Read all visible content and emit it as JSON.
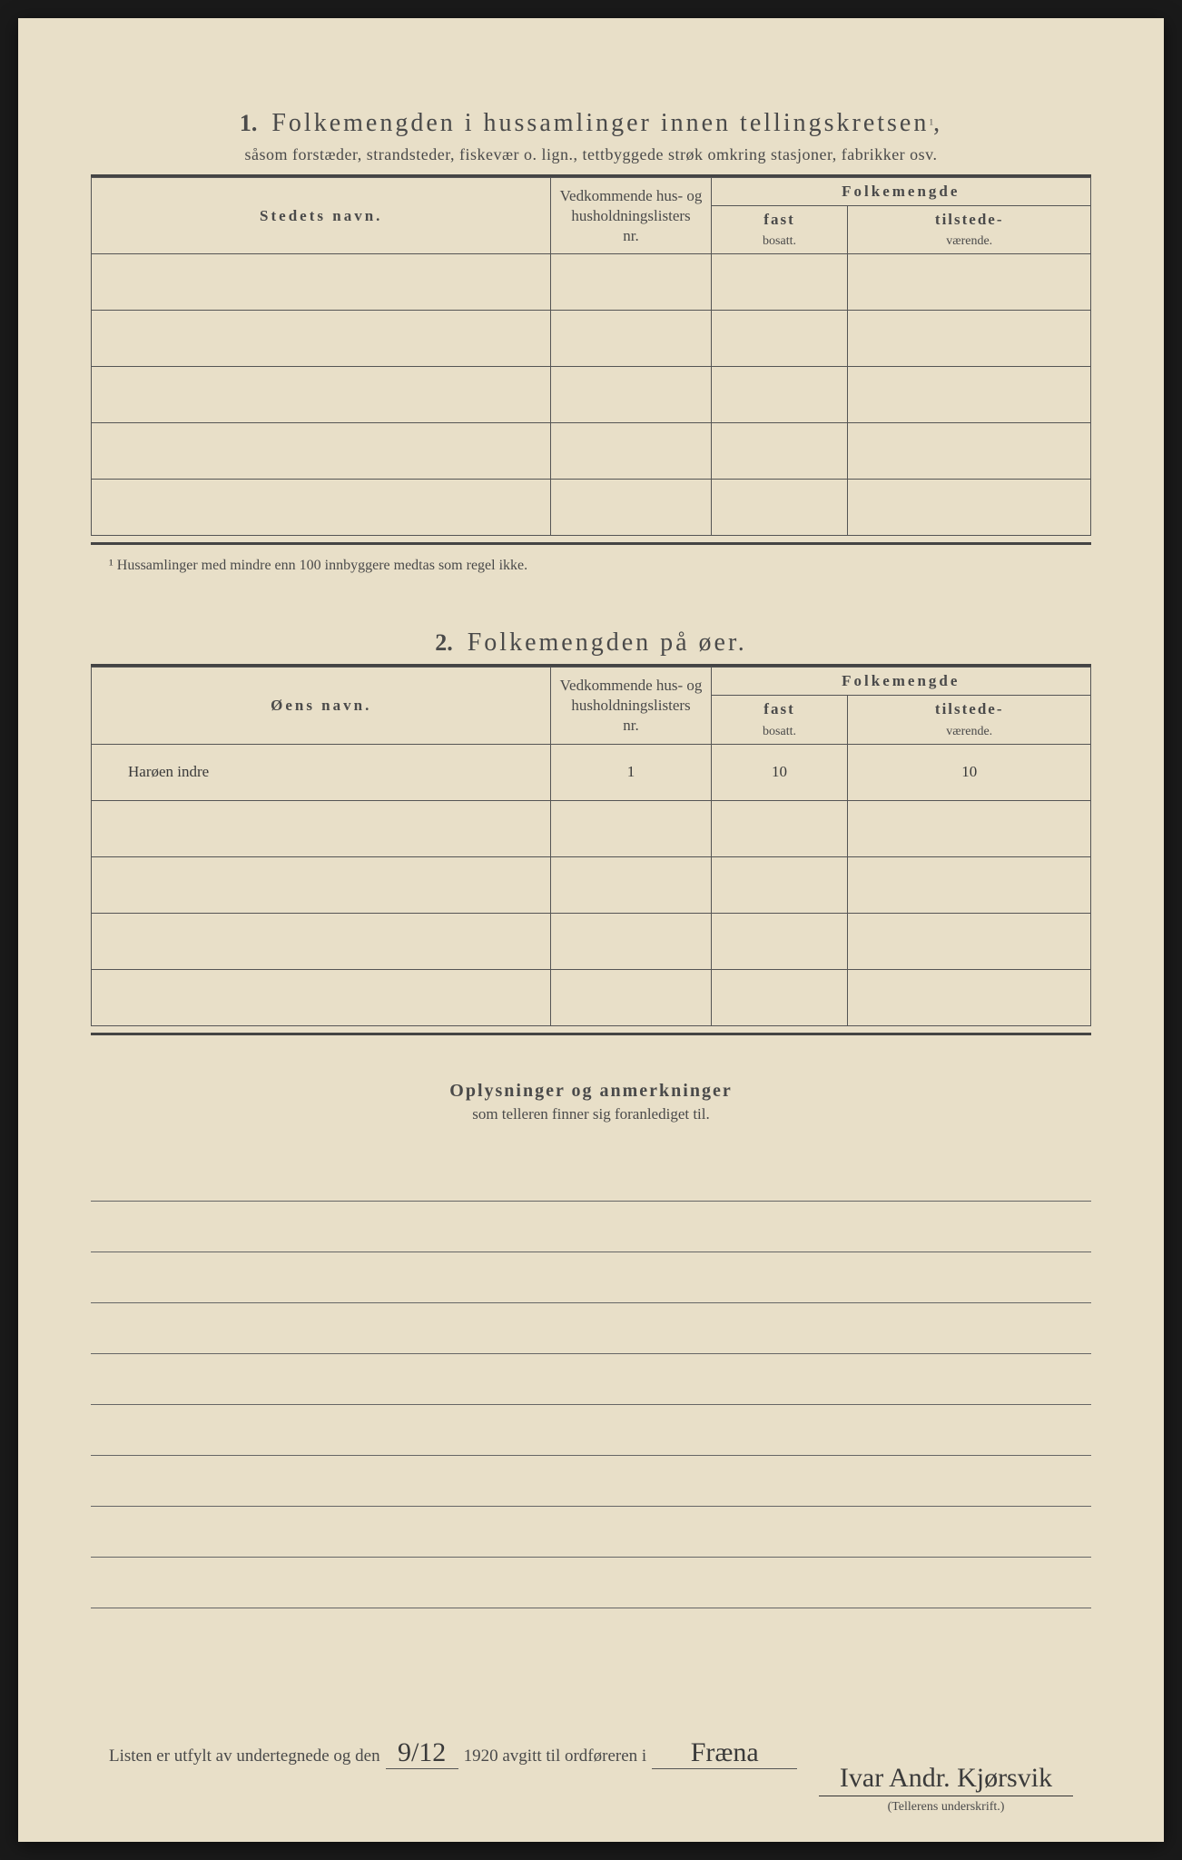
{
  "colors": {
    "paper": "#e8dfc8",
    "ink": "#4a4a4a",
    "rule": "#555555",
    "background": "#1a1a1a"
  },
  "section1": {
    "number": "1.",
    "title": "Folkemengden i hussamlinger innen tellingskretsen",
    "title_sup": "1",
    "subtitle": "såsom forstæder, strandsteder, fiskevær o. lign., tettbyggede strøk omkring stasjoner, fabrikker osv.",
    "columns": {
      "name": "Stedets navn.",
      "nr_line1": "Vedkommende hus- og",
      "nr_line2": "husholdningslisters",
      "nr_line3": "nr.",
      "folke": "Folkemengde",
      "fast_top": "fast",
      "fast_bottom": "bosatt.",
      "tilst_top": "tilstede-",
      "tilst_bottom": "værende."
    },
    "rows": [
      {
        "name": "",
        "nr": "",
        "fast": "",
        "tilst": ""
      },
      {
        "name": "",
        "nr": "",
        "fast": "",
        "tilst": ""
      },
      {
        "name": "",
        "nr": "",
        "fast": "",
        "tilst": ""
      },
      {
        "name": "",
        "nr": "",
        "fast": "",
        "tilst": ""
      },
      {
        "name": "",
        "nr": "",
        "fast": "",
        "tilst": ""
      }
    ],
    "footnote": "¹  Hussamlinger med mindre enn 100 innbyggere medtas som regel ikke."
  },
  "section2": {
    "number": "2.",
    "title": "Folkemengden på øer.",
    "columns": {
      "name": "Øens navn.",
      "nr_line1": "Vedkommende hus- og",
      "nr_line2": "husholdningslisters",
      "nr_line3": "nr.",
      "folke": "Folkemengde",
      "fast_top": "fast",
      "fast_bottom": "bosatt.",
      "tilst_top": "tilstede-",
      "tilst_bottom": "værende."
    },
    "rows": [
      {
        "name": "Harøen indre",
        "nr": "1",
        "fast": "10",
        "tilst": "10"
      },
      {
        "name": "",
        "nr": "",
        "fast": "",
        "tilst": ""
      },
      {
        "name": "",
        "nr": "",
        "fast": "",
        "tilst": ""
      },
      {
        "name": "",
        "nr": "",
        "fast": "",
        "tilst": ""
      },
      {
        "name": "",
        "nr": "",
        "fast": "",
        "tilst": ""
      }
    ]
  },
  "notes": {
    "title": "Oplysninger og anmerkninger",
    "subtitle": "som telleren finner sig foranlediget til.",
    "line_count": 9
  },
  "footer": {
    "text1": "Listen er utfylt av undertegnede og den",
    "date": "9/12",
    "text2": "1920 avgitt til ordføreren i",
    "place": "Fræna",
    "signature": "Ivar Andr. Kjørsvik",
    "signature_caption": "(Tellerens underskrift.)"
  }
}
